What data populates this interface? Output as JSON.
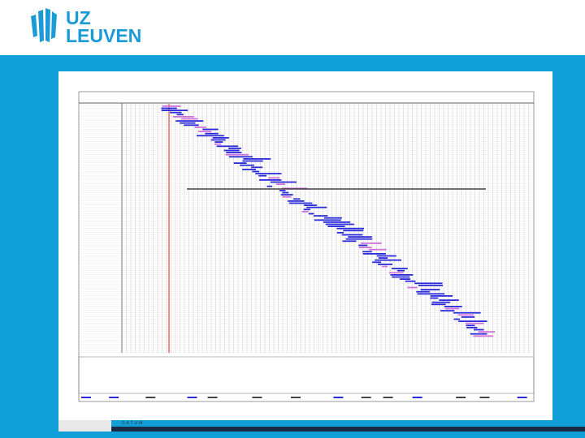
{
  "logo": {
    "line1": "UZ",
    "line2": "LEUVEN"
  },
  "footer": {
    "label": "DATUM"
  }
}
